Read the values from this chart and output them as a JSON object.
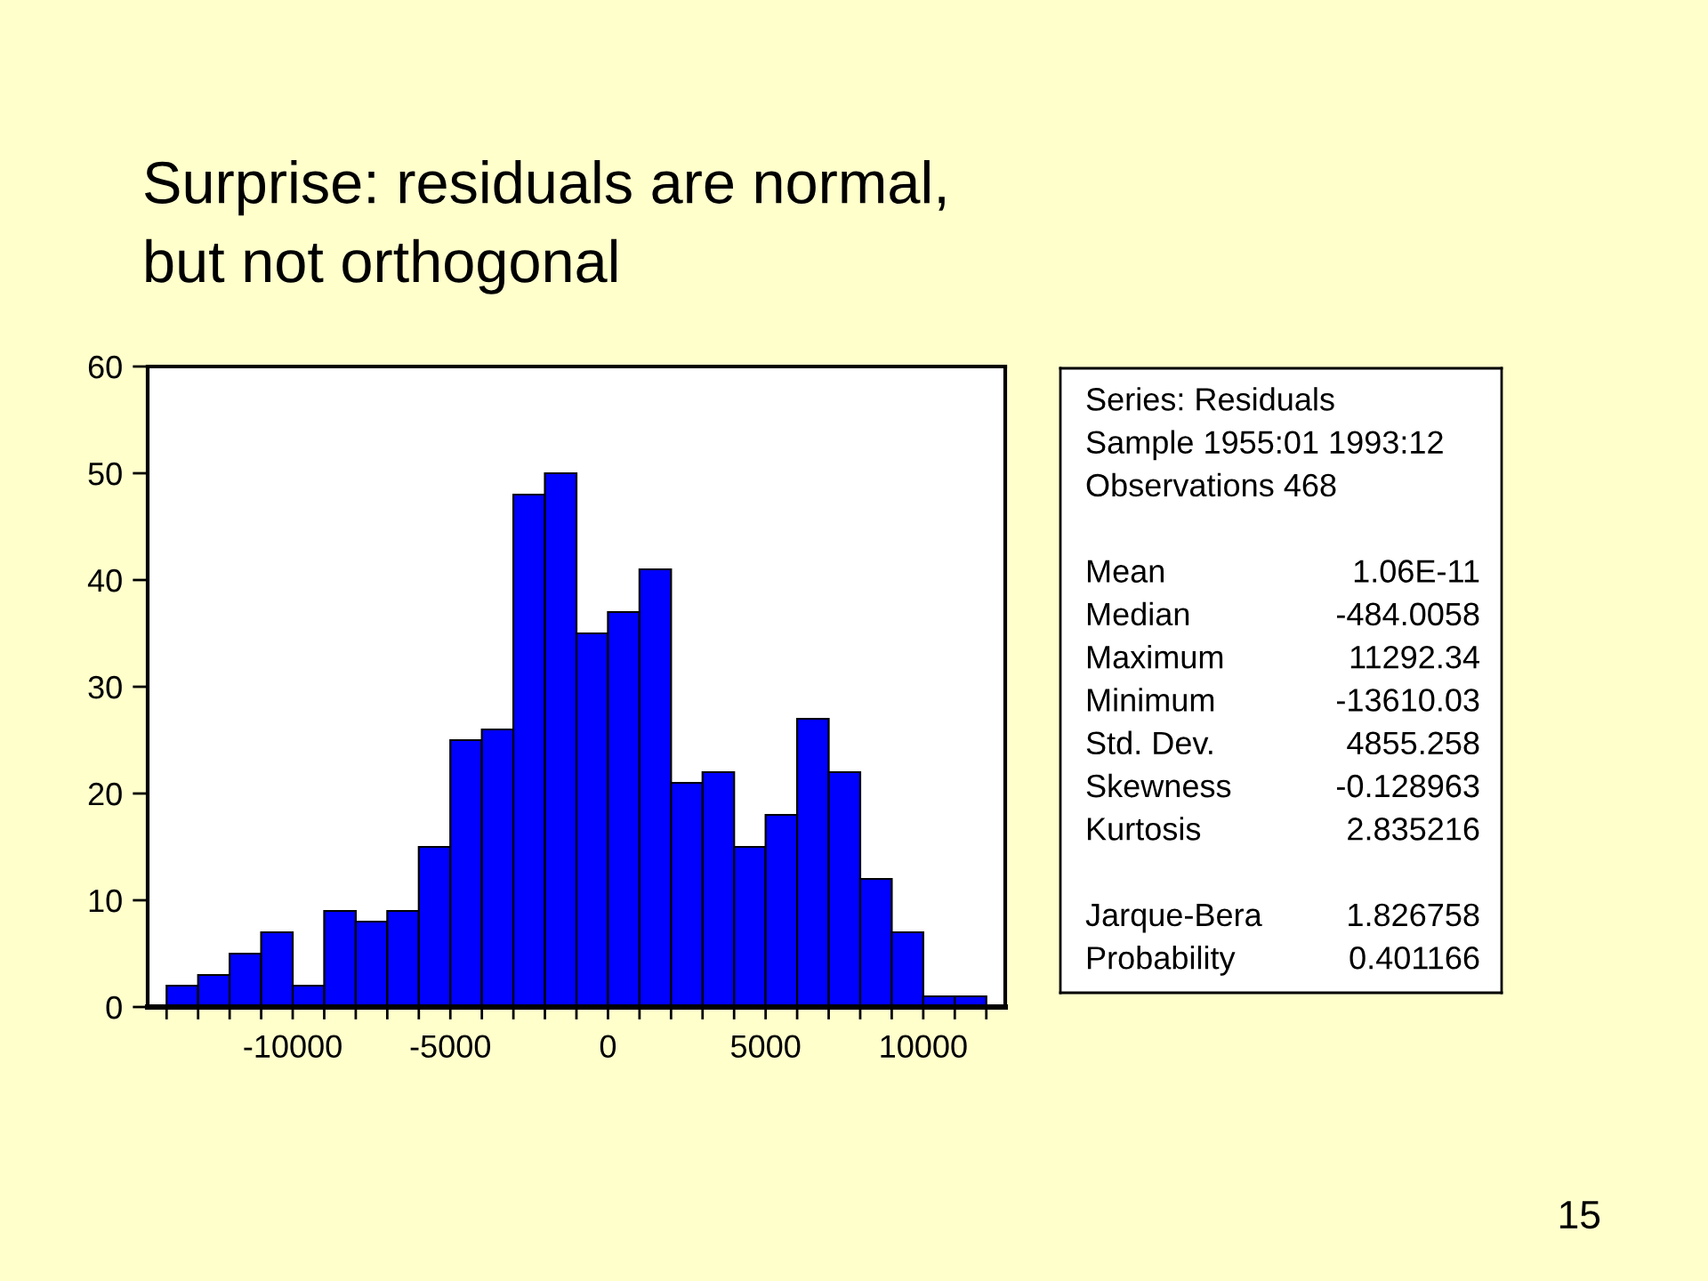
{
  "chart_data": [
    {
      "type": "histogram",
      "title": "Surprise: residuals are normal,\nbut not orthogonal",
      "bins": [
        -14000,
        -13000,
        -12000,
        -11000,
        -10000,
        -9000,
        -8000,
        -7000,
        -6000,
        -5000,
        -4000,
        -3000,
        -2000,
        -1000,
        0,
        1000,
        2000,
        3000,
        4000,
        5000,
        6000,
        7000,
        8000,
        9000,
        10000,
        11000,
        12000
      ],
      "values": [
        2,
        3,
        5,
        7,
        2,
        9,
        8,
        9,
        15,
        25,
        26,
        48,
        50,
        35,
        37,
        41,
        21,
        22,
        15,
        18,
        27,
        22,
        12,
        7,
        1,
        1
      ],
      "color": "#0000ff",
      "xlim": [
        -14600,
        12600
      ],
      "xticks": [
        {
          "value": -14000,
          "label": null
        },
        {
          "value": -13000,
          "label": null
        },
        {
          "value": -12000,
          "label": null
        },
        {
          "value": -11000,
          "label": null
        },
        -10000,
        {
          "value": -9000,
          "label": null
        },
        {
          "value": -8000,
          "label": null
        },
        {
          "value": -7000,
          "label": null
        },
        {
          "value": -6000,
          "label": null
        },
        -5000,
        {
          "value": -4000,
          "label": null
        },
        {
          "value": -3000,
          "label": null
        },
        {
          "value": -2000,
          "label": null
        },
        {
          "value": -1000,
          "label": null
        },
        0,
        {
          "value": 1000,
          "label": null
        },
        {
          "value": 2000,
          "label": null
        },
        {
          "value": 3000,
          "label": null
        },
        {
          "value": 4000,
          "label": null
        },
        5000,
        {
          "value": 6000,
          "label": null
        },
        {
          "value": 7000,
          "label": null
        },
        {
          "value": 8000,
          "label": null
        },
        {
          "value": 9000,
          "label": null
        },
        10000,
        {
          "value": 11000,
          "label": null
        },
        {
          "value": 12000,
          "label": null
        }
      ],
      "ylim": [
        0,
        60
      ],
      "yticks": [
        0,
        10,
        20,
        30,
        40,
        50,
        60
      ],
      "annotations": [
        "15"
      ]
    },
    {
      "type": "other",
      "annotations": [
        "Series: Residuals",
        "Sample 1955:01 1993:12",
        "Observations 468"
      ],
      "categories": [
        "Mean",
        "Median",
        "Maximum",
        "Minimum",
        "Std. Dev.",
        "Skewness",
        "Kurtosis",
        "Jarque-Bera",
        "Probability"
      ],
      "values": [
        1.06e-11,
        -484.0058,
        11292.34,
        -13610.03,
        4855.258,
        -0.128963,
        2.835216,
        1.826758,
        0.401166
      ],
      "value_labels": [
        "1.06E-11",
        "-484.0058",
        "11292.34",
        "-13610.03",
        "4855.258",
        "-0.128963",
        "2.835216",
        "1.826758",
        "0.401166"
      ]
    }
  ]
}
